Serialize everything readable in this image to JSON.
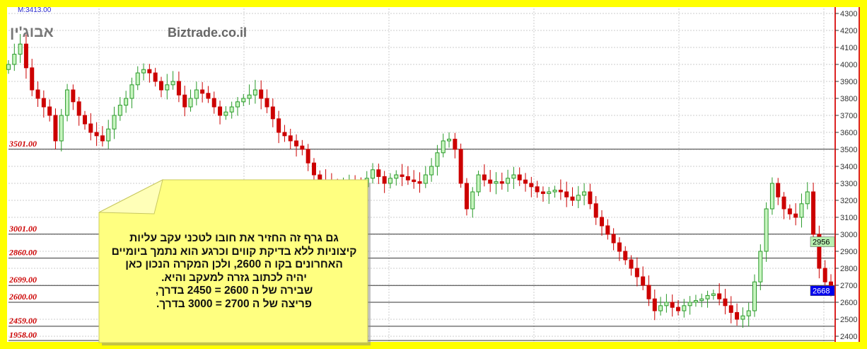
{
  "chart_data": {
    "type": "candlestick",
    "title": "אבוג'ין",
    "watermark": "Biztrade.co.il",
    "max_label": "M:3413.00",
    "ylim": [
      2400,
      4300
    ],
    "y_ticks": [
      4300,
      4200,
      4100,
      4000,
      3900,
      3800,
      3700,
      3600,
      3500,
      3400,
      3300,
      3200,
      3100,
      3000,
      2900,
      2800,
      2700,
      2600,
      2500,
      2400
    ],
    "grid": true,
    "closes": [
      4000,
      4060,
      4120,
      3980,
      3850,
      3800,
      3750,
      3700,
      3550,
      3700,
      3850,
      3780,
      3700,
      3650,
      3600,
      3580,
      3550,
      3620,
      3700,
      3760,
      3800,
      3880,
      3950,
      3970,
      3950,
      3900,
      3850,
      3880,
      3900,
      3820,
      3750,
      3800,
      3850,
      3830,
      3800,
      3750,
      3700,
      3720,
      3750,
      3780,
      3800,
      3820,
      3850,
      3800,
      3750,
      3680,
      3600,
      3580,
      3550,
      3520,
      3500,
      3420,
      3350,
      3320,
      3300,
      3270,
      3250,
      3280,
      3300,
      3290,
      3280,
      3330,
      3380,
      3340,
      3300,
      3330,
      3350,
      3340,
      3320,
      3310,
      3300,
      3350,
      3400,
      3480,
      3550,
      3560,
      3500,
      3300,
      3150,
      3250,
      3350,
      3320,
      3300,
      3310,
      3300,
      3330,
      3350,
      3320,
      3300,
      3280,
      3250,
      3240,
      3250,
      3260,
      3250,
      3220,
      3200,
      3230,
      3250,
      3180,
      3100,
      3050,
      3000,
      2950,
      2900,
      2850,
      2800,
      2750,
      2700,
      2620,
      2550,
      2580,
      2600,
      2570,
      2550,
      2580,
      2600,
      2610,
      2620,
      2640,
      2650,
      2620,
      2580,
      2540,
      2500,
      2520,
      2550,
      2720,
      2900,
      3150,
      3300,
      3220,
      3150,
      3120,
      3100,
      3180,
      3250,
      3000,
      2800,
      2720,
      2680
    ],
    "levels": [
      {
        "label": "3501.00",
        "value": 3501
      },
      {
        "label": "3001.00",
        "value": 3001
      },
      {
        "label": "2860.00",
        "value": 2860
      },
      {
        "label": "2699.00",
        "value": 2699
      },
      {
        "label": "2600.00",
        "value": 2600
      },
      {
        "label": "2459.00",
        "value": 2459
      },
      {
        "label": "1958.00",
        "value": 1958
      }
    ],
    "axis_markers": [
      {
        "label": "2956",
        "value": 2956,
        "color": "#b8f0b0"
      },
      {
        "label": "2668",
        "value": 2668,
        "color": "#0000ee"
      }
    ],
    "colors": {
      "up": "#2a9a2a",
      "up_fill": "#c8f5c0",
      "down": "#cc0000",
      "level_text": "#cc0000",
      "frame": "#ffff00",
      "axis_line": "#dd2222"
    }
  },
  "note": {
    "text": "גם גרף זה   החזיר את חובו לטכני עקב  עליות\nקיצוניות ללא בדיקת קווים וכרגע הוא נתמך ביומיים\nהאחרונים בקו ה 2600, ולכן המקרה  הנכון כאן\nיהיה לכתוב גזרה למעקב והיא.\nשבירה  של ה 2600 = 2450  בדרך,\nפריצה  של ה 2700 = 3000   בדרך."
  }
}
